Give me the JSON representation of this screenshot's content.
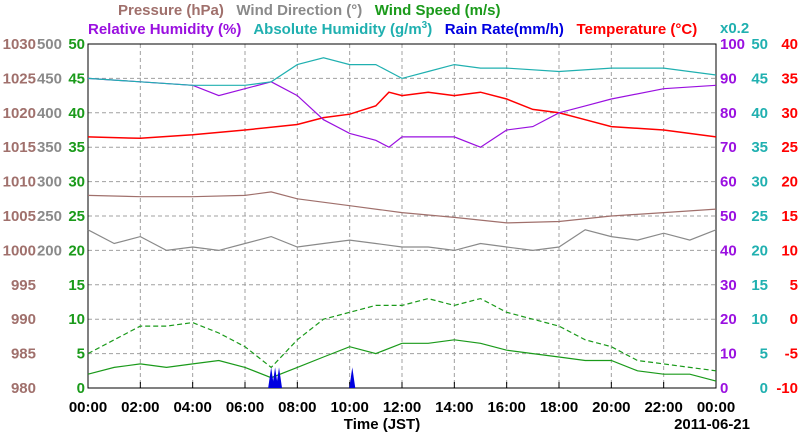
{
  "legend": {
    "row1": [
      {
        "label": "Pressure (hPa)",
        "color": "#a0706c"
      },
      {
        "label": "Wind Direction (°)",
        "color": "#8a8a8a"
      },
      {
        "label": "Wind Speed (m/s)",
        "color": "#1a9a1a"
      }
    ],
    "row2": [
      {
        "label": "Relative Humidity (%)",
        "color": "#9a10e0"
      },
      {
        "label": "Absolute Humidity (g/m",
        "sup": "3",
        "tail": ")",
        "color": "#20b0b0"
      },
      {
        "label": "Rain Rate(mm/h)",
        "color": "#0000e0"
      },
      {
        "label": "Temperature (°C)",
        "color": "#ff0000"
      }
    ],
    "scale_note": "x0.2"
  },
  "axis": {
    "xlabel": "Time (JST)",
    "date": "2011-06-21",
    "x_ticks": [
      "00:00",
      "02:00",
      "04:00",
      "06:00",
      "08:00",
      "10:00",
      "12:00",
      "14:00",
      "16:00",
      "18:00",
      "20:00",
      "22:00",
      "00:00"
    ],
    "pressure_ticks": [
      "1030",
      "1025",
      "1020",
      "1015",
      "1010",
      "1005",
      "1000",
      "995",
      "990",
      "985",
      "980"
    ],
    "winddir_ticks": [
      "500",
      "450",
      "400",
      "350",
      "300",
      "250",
      "200"
    ],
    "windspeed_ticks": [
      "50",
      "45",
      "40",
      "35",
      "30",
      "25",
      "20",
      "15",
      "10",
      "5",
      "0"
    ],
    "rh_ticks": [
      "100",
      "90",
      "80",
      "70",
      "60",
      "50",
      "40",
      "30",
      "20",
      "10",
      "0"
    ],
    "abs_ticks": [
      "50",
      "45",
      "40",
      "35",
      "30",
      "25",
      "20",
      "15",
      "10",
      "5",
      "0"
    ],
    "temp_ticks": [
      "40",
      "35",
      "30",
      "25",
      "20",
      "15",
      "10",
      "5",
      "0",
      "-5",
      "-10"
    ]
  },
  "colors": {
    "pressure": "#a0706c",
    "wind_direction": "#8a8a8a",
    "wind_speed": "#1a9a1a",
    "relative_humidity": "#9a10e0",
    "absolute_humidity": "#20b0b0",
    "rain_rate": "#0000e0",
    "temperature": "#ff0000",
    "grid": "#a0a0a0"
  },
  "chart_data": {
    "type": "line",
    "x_unit": "hour (JST)",
    "xlim": [
      0,
      24
    ],
    "grid": true,
    "series": [
      {
        "name": "Temperature (°C)",
        "axis": "temperature",
        "ylim": [
          -10,
          40
        ],
        "x": [
          0,
          2,
          4,
          6,
          8,
          9,
          10,
          11,
          11.5,
          12,
          13,
          14,
          15,
          16,
          17,
          18,
          19,
          20,
          22,
          24
        ],
        "values": [
          26.5,
          26.3,
          26.8,
          27.5,
          28.3,
          29.3,
          29.8,
          31,
          33,
          32.5,
          33,
          32.5,
          33,
          32,
          30.5,
          30,
          29,
          28,
          27.5,
          26.5
        ]
      },
      {
        "name": "Relative Humidity (%)",
        "axis": "relative_humidity",
        "ylim": [
          0,
          100
        ],
        "x": [
          0,
          2,
          4,
          5,
          6,
          7,
          8,
          9,
          10,
          11,
          11.5,
          12,
          13,
          14,
          15,
          16,
          17,
          18,
          19,
          20,
          22,
          24
        ],
        "values": [
          90,
          89,
          88,
          85,
          87,
          89,
          85,
          78,
          74,
          72,
          70,
          73,
          73,
          73,
          70,
          75,
          76,
          80,
          82,
          84,
          87,
          88
        ]
      },
      {
        "name": "Absolute Humidity (g/m3)",
        "axis": "absolute_humidity",
        "ylim": [
          0,
          50
        ],
        "x": [
          0,
          2,
          4,
          6,
          7,
          8,
          9,
          10,
          11,
          12,
          13,
          14,
          15,
          16,
          18,
          20,
          22,
          24
        ],
        "values": [
          45,
          44.5,
          44,
          44,
          44.5,
          47,
          48,
          47,
          47,
          45,
          46,
          47,
          46.5,
          46.5,
          46,
          46.5,
          46.5,
          45.5
        ]
      },
      {
        "name": "Pressure (hPa)",
        "axis": "pressure",
        "ylim": [
          980,
          1030
        ],
        "x": [
          0,
          2,
          4,
          6,
          7,
          8,
          10,
          12,
          14,
          16,
          18,
          20,
          22,
          24
        ],
        "values": [
          1008,
          1007.8,
          1007.8,
          1008,
          1008.5,
          1007.5,
          1006.5,
          1005.5,
          1004.8,
          1004,
          1004.2,
          1005,
          1005.5,
          1006
        ]
      },
      {
        "name": "Wind Direction (°)",
        "axis": "wind_direction",
        "ylim": [
          0,
          500
        ],
        "x": [
          0,
          1,
          2,
          3,
          4,
          5,
          6,
          7,
          8,
          9,
          10,
          11,
          12,
          13,
          14,
          15,
          16,
          17,
          18,
          19,
          20,
          21,
          22,
          23,
          24
        ],
        "values": [
          230,
          210,
          220,
          200,
          205,
          200,
          210,
          220,
          205,
          210,
          215,
          210,
          205,
          205,
          200,
          210,
          205,
          200,
          205,
          230,
          220,
          215,
          225,
          215,
          230
        ]
      },
      {
        "name": "Wind Speed (m/s) mean",
        "axis": "wind_speed",
        "ylim": [
          0,
          50
        ],
        "x": [
          0,
          1,
          2,
          3,
          4,
          5,
          6,
          7,
          8,
          9,
          10,
          11,
          12,
          13,
          14,
          15,
          16,
          17,
          18,
          19,
          20,
          21,
          22,
          23,
          24
        ],
        "values": [
          2,
          3,
          3.5,
          3,
          3.5,
          4,
          3,
          1.5,
          3,
          4.5,
          6,
          5,
          6.5,
          6.5,
          7,
          6.5,
          5.5,
          5,
          4.5,
          4,
          4,
          2.5,
          2,
          2,
          1
        ]
      },
      {
        "name": "Wind Speed (m/s) gust",
        "axis": "wind_speed",
        "ylim": [
          0,
          50
        ],
        "x": [
          0,
          1,
          2,
          3,
          4,
          5,
          6,
          7,
          8,
          9,
          10,
          11,
          12,
          13,
          14,
          15,
          16,
          17,
          18,
          19,
          20,
          21,
          22,
          23,
          24
        ],
        "values": [
          5,
          7,
          9,
          9,
          9.5,
          8,
          6,
          3,
          7,
          10,
          11,
          12,
          12,
          13,
          12,
          13,
          11,
          10,
          9,
          7,
          6,
          4,
          3.5,
          3,
          2.5
        ]
      },
      {
        "name": "Rain Rate(mm/h)",
        "axis": "rain_rate",
        "ylim": [
          0,
          50
        ],
        "x": [
          7.0,
          7.15,
          7.3,
          10.1
        ],
        "values": [
          3,
          3,
          3,
          3
        ]
      }
    ]
  }
}
